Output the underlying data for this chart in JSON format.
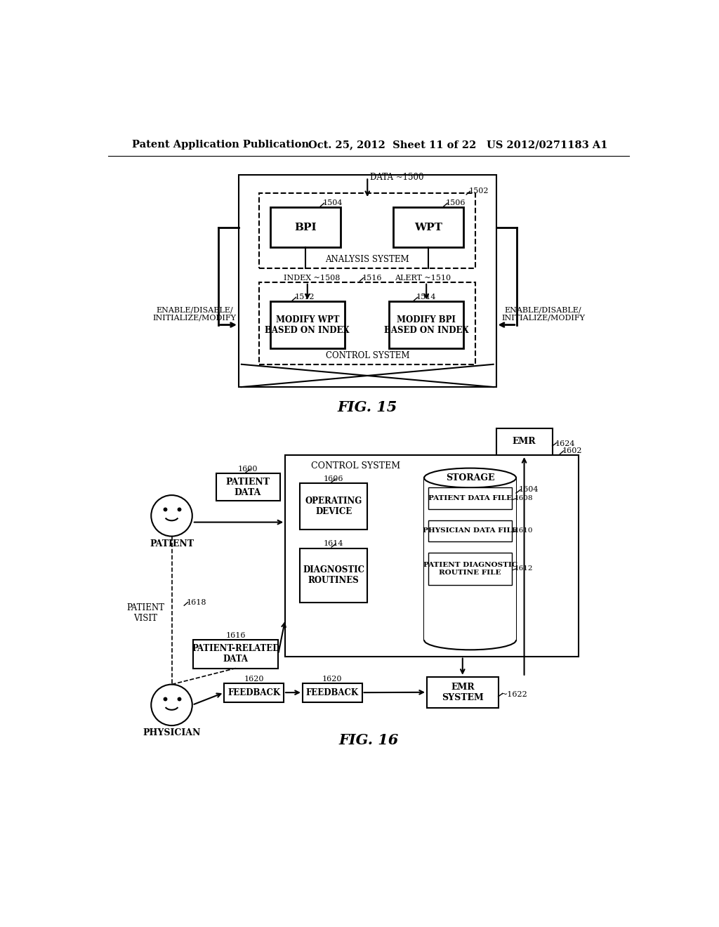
{
  "header_left": "Patent Application Publication",
  "header_mid": "Oct. 25, 2012  Sheet 11 of 22",
  "header_right": "US 2012/0271183 A1",
  "fig15_label": "FIG. 15",
  "fig16_label": "FIG. 16",
  "background": "#ffffff"
}
